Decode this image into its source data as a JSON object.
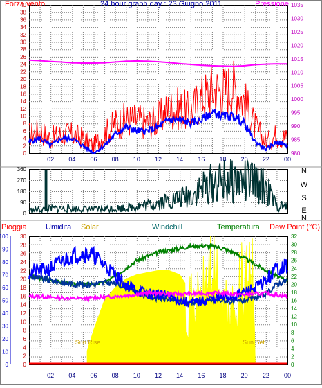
{
  "title": "24 hour graph day : 23 Giugno 2011",
  "x_ticks": [
    "02",
    "04",
    "06",
    "08",
    "10",
    "12",
    "14",
    "16",
    "18",
    "20",
    "22",
    "00"
  ],
  "colors": {
    "wind": "#ff0000",
    "gust_avg": "#0000ff",
    "pressure": "#ff00ff",
    "direction": "#003333",
    "rain": "#ff0000",
    "humidity": "#0000ff",
    "solar": "#ffff00",
    "solar_label": "#c8a000",
    "windchill": "#006666",
    "temperature": "#008000",
    "dewpoint": "#ff00ff",
    "grid": "#7f7f7f"
  },
  "chart_data": [
    {
      "type": "line",
      "title": "24 hour graph day : 23 Giugno 2011",
      "left_axis_label": "Forza vento",
      "right_axis_label": "Pressione",
      "left_ticks": [
        "0",
        "2",
        "4",
        "6",
        "8",
        "10",
        "12",
        "14",
        "16",
        "18",
        "20",
        "22",
        "24",
        "26",
        "28",
        "30",
        "32",
        "34",
        "36",
        "38",
        "40"
      ],
      "right_ticks": [
        "980",
        "985",
        "990",
        "995",
        "1000",
        "1005",
        "1010",
        "1015",
        "1020",
        "1025",
        "1030",
        "1035"
      ],
      "ylim_left": [
        0,
        40
      ],
      "ylim_right": [
        980,
        1035
      ],
      "x": [
        0,
        1,
        2,
        3,
        4,
        5,
        6,
        7,
        8,
        9,
        10,
        11,
        12,
        13,
        14,
        15,
        16,
        17,
        18,
        19,
        20,
        21,
        22,
        23,
        24
      ],
      "series": [
        {
          "name": "Forza vento",
          "axis": "left",
          "values": [
            5,
            6,
            4,
            5,
            5,
            4,
            2,
            5,
            8,
            9,
            9,
            8,
            9,
            12,
            12,
            11,
            15,
            17,
            17,
            18,
            14,
            7,
            3,
            5,
            4
          ]
        },
        {
          "name": "",
          "axis": "left",
          "values": [
            3,
            4,
            2,
            4,
            4,
            2,
            0,
            2,
            5,
            7,
            6,
            6,
            7,
            9,
            9,
            8,
            9,
            11,
            10,
            10,
            8,
            3,
            1,
            3,
            2
          ]
        },
        {
          "name": "Pressione",
          "axis": "right",
          "values": [
            1014.5,
            1014.3,
            1014.0,
            1013.8,
            1013.5,
            1013.4,
            1013.4,
            1013.5,
            1013.8,
            1014.1,
            1014.2,
            1014.1,
            1013.9,
            1013.6,
            1013.2,
            1012.9,
            1012.6,
            1012.4,
            1012.3,
            1012.2,
            1012.4,
            1012.8,
            1013.0,
            1013.1,
            1013.1
          ]
        }
      ]
    },
    {
      "type": "line",
      "left_ticks": [
        "0",
        "90",
        "180",
        "270",
        "360"
      ],
      "right_ticks": [
        "N",
        "W",
        "S",
        "E",
        "N"
      ],
      "ylim": [
        0,
        360
      ],
      "x": [
        0,
        1,
        2,
        3,
        4,
        5,
        6,
        7,
        8,
        9,
        10,
        11,
        12,
        13,
        14,
        15,
        16,
        17,
        18,
        19,
        20,
        21,
        22,
        23,
        24
      ],
      "series": [
        {
          "name": "",
          "values": [
            25,
            30,
            38,
            40,
            40,
            36,
            32,
            35,
            42,
            45,
            58,
            70,
            90,
            105,
            120,
            150,
            200,
            240,
            255,
            260,
            260,
            250,
            210,
            55,
            60
          ]
        }
      ]
    },
    {
      "type": "area",
      "legend": [
        "Pioggia",
        "Umidita",
        "Solar",
        "Windchill",
        "Temperatura",
        "Dew Point (°C)"
      ],
      "left_ticks": [
        "0",
        "10",
        "20",
        "30",
        "40",
        "50",
        "60",
        "70",
        "80",
        "90",
        "100"
      ],
      "mid_ticks": [
        "0",
        "2",
        "4",
        "6",
        "8",
        "10",
        "12",
        "14",
        "16",
        "18",
        "20",
        "22",
        "24",
        "26",
        "28",
        "30"
      ],
      "right_ticks": [
        "0",
        "2",
        "4",
        "6",
        "8",
        "10",
        "12",
        "14",
        "16",
        "18",
        "20",
        "22",
        "24",
        "26",
        "28",
        "30",
        "32"
      ],
      "annotations": [
        "Sun Rise",
        "Sun Set"
      ],
      "x": [
        0,
        1,
        2,
        3,
        4,
        5,
        6,
        7,
        8,
        9,
        10,
        11,
        12,
        13,
        14,
        15,
        16,
        17,
        18,
        19,
        20,
        21,
        22,
        23,
        24
      ],
      "series": [
        {
          "name": "Umidita",
          "values": [
            72,
            73,
            75,
            80,
            85,
            87,
            85,
            78,
            70,
            62,
            58,
            55,
            55,
            53,
            50,
            48,
            49,
            51,
            52,
            53,
            56,
            60,
            65,
            75,
            77
          ]
        },
        {
          "name": "Temperatura",
          "values": [
            22,
            21.5,
            21,
            20.5,
            20,
            20,
            20,
            20.5,
            22,
            24,
            26,
            27,
            28,
            28.5,
            29,
            29.5,
            29.7,
            29.5,
            29,
            28,
            26.5,
            25,
            23.5,
            22,
            21
          ]
        },
        {
          "name": "Dew Point (°C)",
          "values": [
            17,
            17,
            16.8,
            16.6,
            16.5,
            16.5,
            16.6,
            16.8,
            17,
            17.2,
            17.5,
            17.8,
            17.8,
            17.7,
            17.6,
            17.6,
            17.7,
            17.8,
            17.8,
            17.6,
            17.4,
            17.6,
            17.8,
            17.3,
            17.0
          ]
        },
        {
          "name": "Windchill",
          "values": [
            22,
            21.5,
            21,
            20.5,
            20,
            20,
            20,
            20.5,
            20.2,
            19.5,
            18,
            17,
            16.5,
            16.3,
            15.5,
            15.5,
            15.8,
            16,
            16,
            15.5,
            16,
            16.5,
            17.5,
            20,
            21
          ]
        },
        {
          "name": "Solar",
          "values": [
            0,
            0,
            0,
            0,
            0,
            0,
            8,
            15,
            18,
            20,
            21,
            21.5,
            22,
            22,
            21,
            17,
            18,
            30,
            17,
            15,
            24,
            0,
            0,
            0,
            0
          ]
        },
        {
          "name": "Pioggia",
          "values": [
            0,
            0,
            0,
            0,
            0,
            0,
            0,
            0,
            0,
            0,
            0,
            0,
            0,
            0,
            0,
            0,
            0,
            0,
            0,
            0,
            0,
            0,
            0,
            0,
            0
          ]
        }
      ]
    }
  ]
}
